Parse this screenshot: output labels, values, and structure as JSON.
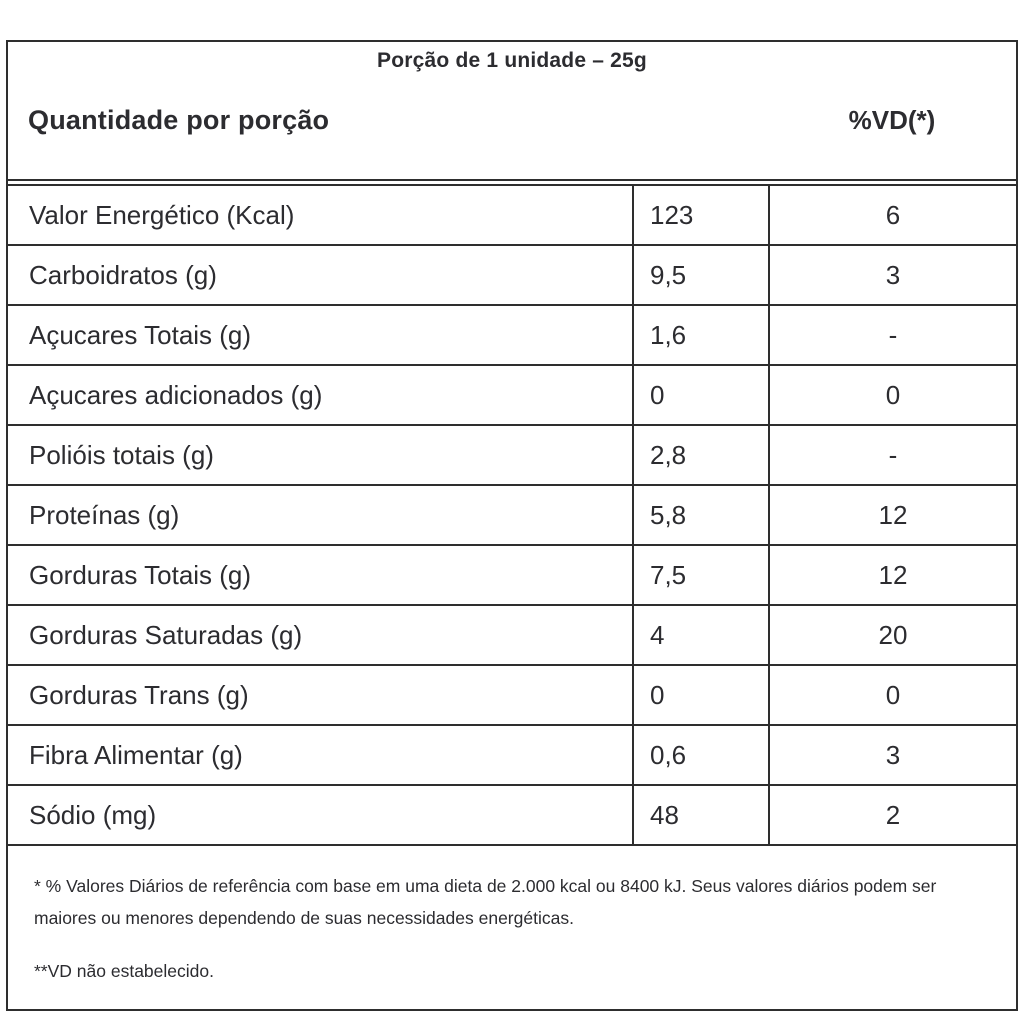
{
  "label": {
    "serving_title": "Porção de 1 unidade – 25g",
    "header": {
      "quantity_label": "Quantidade por porção",
      "dv_label": "%VD(*)"
    },
    "rows": [
      {
        "name": "Valor Energético (Kcal)",
        "amount": "123",
        "dv": "6"
      },
      {
        "name": "Carboidratos (g)",
        "amount": "9,5",
        "dv": "3"
      },
      {
        "name": "Açucares Totais (g)",
        "amount": "1,6",
        "dv": "-"
      },
      {
        "name": "Açucares adicionados (g)",
        "amount": "0",
        "dv": "0"
      },
      {
        "name": "Polióis totais (g)",
        "amount": "2,8",
        "dv": "-"
      },
      {
        "name": "Proteínas (g)",
        "amount": "5,8",
        "dv": "12"
      },
      {
        "name": "Gorduras Totais (g)",
        "amount": "7,5",
        "dv": "12"
      },
      {
        "name": "Gorduras Saturadas (g)",
        "amount": "4",
        "dv": "20"
      },
      {
        "name": "Gorduras Trans (g)",
        "amount": "0",
        "dv": "0"
      },
      {
        "name": "Fibra Alimentar (g)",
        "amount": "0,6",
        "dv": "3"
      },
      {
        "name": "Sódio (mg)",
        "amount": "48",
        "dv": "2"
      }
    ],
    "footnotes": {
      "daily_values": "* % Valores Diários de referência com base em uma dieta de 2.000 kcal ou 8400 kJ. Seus valores diários podem ser maiores ou menores dependendo de suas necessidades energéticas.",
      "not_established": "**VD não estabelecido."
    },
    "colors": {
      "border": "#2e2e2e",
      "text": "#2c2c30",
      "background": "#ffffff"
    }
  }
}
